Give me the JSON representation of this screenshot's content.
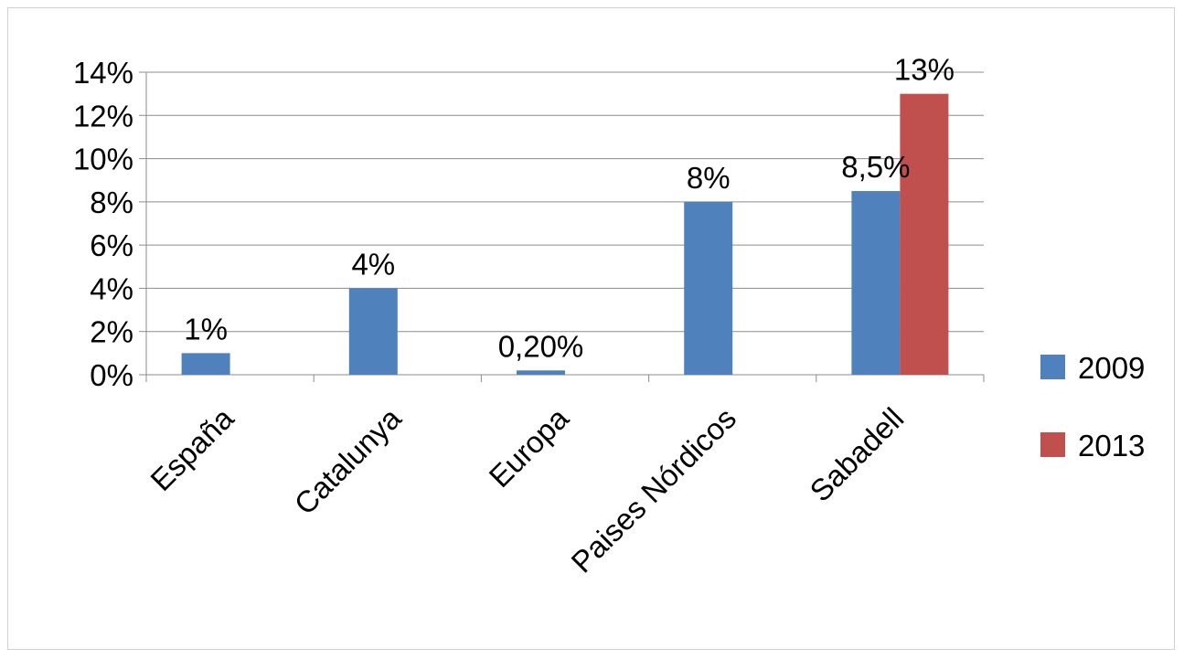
{
  "chart_data": {
    "type": "bar",
    "title": "",
    "xlabel": "",
    "ylabel": "",
    "ylim": [
      0,
      14
    ],
    "y_ticks": [
      "0%",
      "2%",
      "4%",
      "6%",
      "8%",
      "10%",
      "12%",
      "14%"
    ],
    "y_tick_values": [
      0,
      2,
      4,
      6,
      8,
      10,
      12,
      14
    ],
    "grid": true,
    "legend_position": "right",
    "categories": [
      "España",
      "Catalunya",
      "Europa",
      "Paises Nórdicos",
      "Sabadell"
    ],
    "series": [
      {
        "name": "2009",
        "color": "#4f81bd",
        "values": [
          1,
          4,
          0.2,
          8,
          8.5
        ],
        "labels": [
          "1%",
          "4%",
          "0,20%",
          "8%",
          "8,5%"
        ]
      },
      {
        "name": "2013",
        "color": "#c0504d",
        "values": [
          null,
          null,
          null,
          null,
          13
        ],
        "labels": [
          null,
          null,
          null,
          null,
          "13%"
        ]
      }
    ]
  }
}
